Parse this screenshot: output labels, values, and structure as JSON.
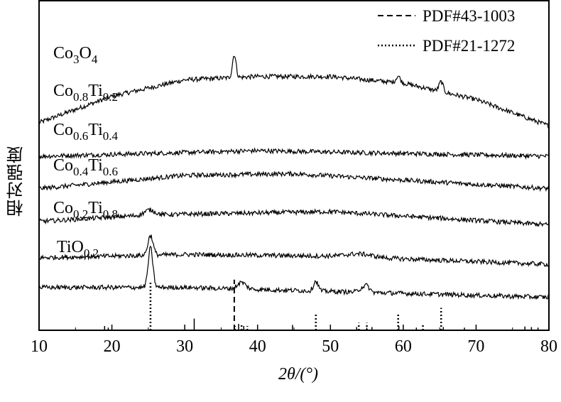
{
  "chart_data": {
    "type": "line",
    "xlabel": "2θ/(°)",
    "ylabel": "相对强度",
    "xlim": [
      10,
      80
    ],
    "xticks": [
      "10",
      "20",
      "30",
      "40",
      "50",
      "60",
      "70",
      "80"
    ],
    "grid": false,
    "legend": {
      "placement": "top-right",
      "entries": [
        {
          "label": "PDF#43-1003",
          "style": "dashed"
        },
        {
          "label": "PDF#21-1272",
          "style": "dotted"
        }
      ]
    },
    "series": [
      {
        "name": "Co3O4",
        "label_base": "Co",
        "label_sub": "3",
        "label_base2": "O",
        "label_sub2": "4",
        "baseline": [
          [
            10,
            0.63
          ],
          [
            20,
            0.71
          ],
          [
            30,
            0.76
          ],
          [
            40,
            0.77
          ],
          [
            50,
            0.77
          ],
          [
            60,
            0.75
          ],
          [
            70,
            0.7
          ],
          [
            80,
            0.62
          ]
        ],
        "peaks": [
          [
            36.8,
            0.07,
            0.35
          ],
          [
            59.3,
            0.02,
            0.4
          ],
          [
            65.2,
            0.03,
            0.4
          ]
        ]
      },
      {
        "name": "Co0.8Ti0.2",
        "label_base": "Co",
        "label_sub": "0.8",
        "label_base2": "Ti",
        "label_sub2": "0.2",
        "baseline": [
          [
            10,
            0.528
          ],
          [
            40,
            0.545
          ],
          [
            80,
            0.528
          ]
        ],
        "peaks": []
      },
      {
        "name": "Co0.6Ti0.4",
        "label_base": "Co",
        "label_sub": "0.6",
        "label_base2": "Ti",
        "label_sub2": "0.4",
        "baseline": [
          [
            10,
            0.43
          ],
          [
            30,
            0.47
          ],
          [
            45,
            0.475
          ],
          [
            80,
            0.43
          ]
        ],
        "peaks": []
      },
      {
        "name": "Co0.4Ti0.6",
        "label_base": "Co",
        "label_sub": "0.4",
        "label_base2": "Ti",
        "label_sub2": "0.6",
        "baseline": [
          [
            10,
            0.33
          ],
          [
            25,
            0.35
          ],
          [
            50,
            0.36
          ],
          [
            80,
            0.32
          ]
        ],
        "peaks": [
          [
            25.2,
            0.015,
            1.0
          ]
        ]
      },
      {
        "name": "Co0.2Ti0.8",
        "label_base": "Co",
        "label_sub": "0.2",
        "label_base2": "Ti",
        "label_sub2": "0.8",
        "baseline": [
          [
            10,
            0.22
          ],
          [
            30,
            0.23
          ],
          [
            50,
            0.225
          ],
          [
            80,
            0.2
          ]
        ],
        "peaks": [
          [
            25.3,
            0.06,
            0.5
          ],
          [
            54,
            0.01,
            2.5
          ]
        ]
      },
      {
        "name": "TiO0.2",
        "label_base": "TiO",
        "label_sub": "0.2",
        "label_base2": "",
        "label_sub2": "",
        "baseline": [
          [
            10,
            0.13
          ],
          [
            30,
            0.13
          ],
          [
            80,
            0.1
          ]
        ],
        "peaks": [
          [
            25.3,
            0.12,
            0.45
          ],
          [
            37.8,
            0.02,
            0.8
          ],
          [
            48.0,
            0.03,
            0.45
          ],
          [
            54.5,
            0.015,
            0.7
          ],
          [
            55.1,
            0.012,
            0.5
          ]
        ]
      }
    ],
    "reference_lines": [
      {
        "ref": "PDF#21-1272",
        "style": "dotted",
        "sticks": [
          [
            25.3,
            0.92
          ],
          [
            48.0,
            0.32
          ],
          [
            53.9,
            0.14
          ],
          [
            55.0,
            0.14
          ],
          [
            62.7,
            0.12
          ],
          [
            37.8,
            0.12
          ],
          [
            36.9,
            0.08
          ],
          [
            38.6,
            0.08
          ]
        ]
      },
      {
        "ref": "PDF#43-1003",
        "style": "dotted-bold",
        "sticks": [
          [
            59.3,
            0.32
          ],
          [
            65.2,
            0.42
          ]
        ]
      },
      {
        "ref": "PDF#43-1003",
        "style": "dashed",
        "sticks": [
          [
            36.8,
            0.95
          ]
        ]
      },
      {
        "ref": "PDF#43-1003",
        "style": "solid",
        "sticks": [
          [
            19.0,
            0.08
          ],
          [
            19.5,
            0.05
          ],
          [
            31.3,
            0.22
          ],
          [
            37.4,
            0.12
          ],
          [
            38.1,
            0.08
          ],
          [
            44.8,
            0.1
          ],
          [
            53.6,
            0.06
          ],
          [
            55.7,
            0.06
          ],
          [
            59.4,
            0.08
          ],
          [
            61.8,
            0.05
          ],
          [
            65.5,
            0.06
          ],
          [
            68.4,
            0.05
          ],
          [
            76.7,
            0.07
          ],
          [
            77.6,
            0.06
          ],
          [
            78.5,
            0.05
          ]
        ]
      }
    ]
  }
}
